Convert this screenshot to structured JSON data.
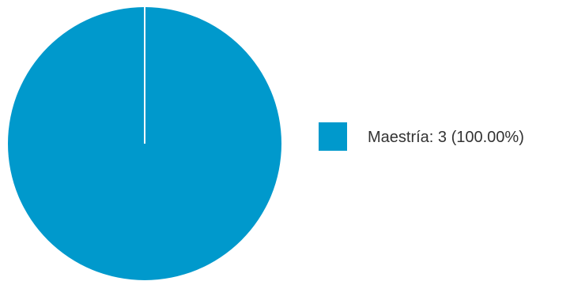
{
  "chart_data": {
    "type": "pie",
    "title": "",
    "slices": [
      {
        "label": "Maestría",
        "value": 3,
        "percent": 100.0,
        "legend_text": "Maestría: 3 (100.00%)",
        "color": "#0099cc"
      }
    ],
    "legend_position": "right",
    "slice_border_color": "#ffffff"
  }
}
